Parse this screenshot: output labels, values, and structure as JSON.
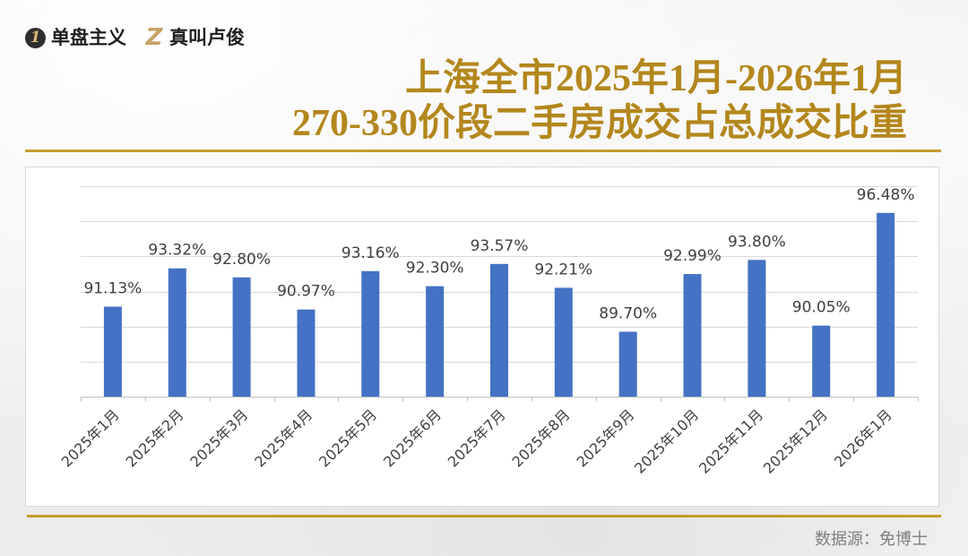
{
  "brand": {
    "logo1_mark": "1",
    "logo1_name": "单盘主义",
    "logo2_mark": "Z",
    "logo2_name": "真叫卢俊"
  },
  "colors": {
    "title": "#B3871C",
    "rule": "#C49B2C",
    "bar": "#4472C4",
    "label_text": "#404040",
    "source_text": "#7F7F7F",
    "gridline": "#D9D9D9",
    "axis": "#BFBFBF"
  },
  "chart_data": {
    "type": "bar",
    "title_lines": [
      "上海全市2025年1月-2026年1月",
      "270-330价段二手房成交占总成交比重"
    ],
    "categories": [
      "2025年1月",
      "2025年2月",
      "2025年3月",
      "2025年4月",
      "2025年5月",
      "2025年6月",
      "2025年7月",
      "2025年8月",
      "2025年9月",
      "2025年10月",
      "2025年11月",
      "2025年12月",
      "2026年1月"
    ],
    "values": [
      91.13,
      93.32,
      92.8,
      90.97,
      93.16,
      92.3,
      93.57,
      92.21,
      89.7,
      92.99,
      93.8,
      90.05,
      96.48
    ],
    "value_labels": [
      "91.13%",
      "93.32%",
      "92.80%",
      "90.97%",
      "93.16%",
      "92.30%",
      "93.57%",
      "92.21%",
      "89.70%",
      "92.99%",
      "93.80%",
      "90.05%",
      "96.48%"
    ],
    "xlabel": "",
    "ylabel": "",
    "ylim": [
      86,
      98
    ],
    "ygrid_step": 2,
    "grid": true
  },
  "footer": {
    "source": "数据源：免博士"
  }
}
